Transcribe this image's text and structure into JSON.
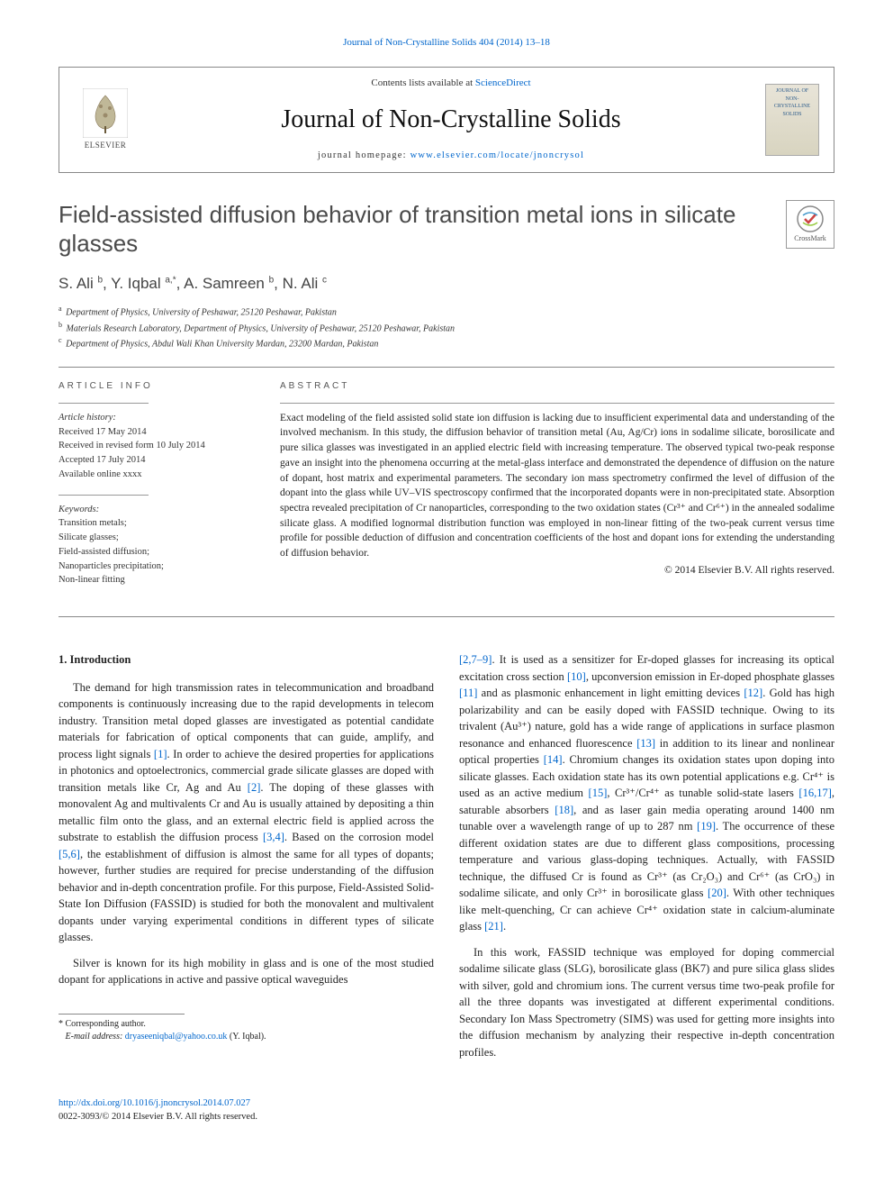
{
  "colors": {
    "link": "#0066cc",
    "text": "#222222",
    "muted": "#555555",
    "border": "#888888",
    "background": "#ffffff"
  },
  "typography": {
    "body_font": "Georgia, Times New Roman, serif",
    "heading_font": "Arial, Helvetica, sans-serif",
    "body_size_pt": 12.5,
    "abstract_size_pt": 11.5,
    "title_size_pt": 26
  },
  "header": {
    "citation_line": "Journal of Non-Crystalline Solids 404 (2014) 13–18",
    "contents_prefix": "Contents lists available at ",
    "contents_link": "ScienceDirect",
    "journal_name": "Journal of Non-Crystalline Solids",
    "homepage_prefix": "journal homepage: ",
    "homepage_url": "www.elsevier.com/locate/jnoncrysol",
    "publisher_brand": "ELSEVIER",
    "cover_caption": "JOURNAL OF NON-CRYSTALLINE SOLIDS"
  },
  "crossmark": {
    "label": "CrossMark"
  },
  "article": {
    "title": "Field-assisted diffusion behavior of transition metal ions in silicate glasses",
    "authors_html": "S. Ali <sup>b</sup>, Y. Iqbal <sup>a,*</sup>, A. Samreen <sup>b</sup>, N. Ali <sup>c</sup>",
    "affiliations": {
      "a": "Department of Physics, University of Peshawar, 25120 Peshawar, Pakistan",
      "b": "Materials Research Laboratory, Department of Physics, University of Peshawar, 25120 Peshawar, Pakistan",
      "c": "Department of Physics, Abdul Wali Khan University Mardan, 23200 Mardan, Pakistan"
    }
  },
  "info": {
    "heading": "ARTICLE INFO",
    "history_label": "Article history:",
    "history": [
      "Received 17 May 2014",
      "Received in revised form 10 July 2014",
      "Accepted 17 July 2014",
      "Available online xxxx"
    ],
    "keywords_label": "Keywords:",
    "keywords": [
      "Transition metals;",
      "Silicate glasses;",
      "Field-assisted diffusion;",
      "Nanoparticles precipitation;",
      "Non-linear fitting"
    ]
  },
  "abstract": {
    "heading": "ABSTRACT",
    "text": "Exact modeling of the field assisted solid state ion diffusion is lacking due to insufficient experimental data and understanding of the involved mechanism. In this study, the diffusion behavior of transition metal (Au, Ag/Cr) ions in sodalime silicate, borosilicate and pure silica glasses was investigated in an applied electric field with increasing temperature. The observed typical two-peak response gave an insight into the phenomena occurring at the metal-glass interface and demonstrated the dependence of diffusion on the nature of dopant, host matrix and experimental parameters. The secondary ion mass spectrometry confirmed the level of diffusion of the dopant into the glass while UV–VIS spectroscopy confirmed that the incorporated dopants were in non-precipitated state. Absorption spectra revealed precipitation of Cr nanoparticles, corresponding to the two oxidation states (Cr³⁺ and Cr⁶⁺) in the annealed sodalime silicate glass. A modified lognormal distribution function was employed in non-linear fitting of the two-peak current versus time profile for possible deduction of diffusion and concentration coefficients of the host and dopant ions for extending the understanding of diffusion behavior.",
    "copyright": "© 2014 Elsevier B.V. All rights reserved."
  },
  "body": {
    "section_number": "1.",
    "section_title": "Introduction",
    "left_paragraphs": [
      "The demand for high transmission rates in telecommunication and broadband components is continuously increasing due to the rapid developments in telecom industry. Transition metal doped glasses are investigated as potential candidate materials for fabrication of optical components that can guide, amplify, and process light signals [1]. In order to achieve the desired properties for applications in photonics and optoelectronics, commercial grade silicate glasses are doped with transition metals like Cr, Ag and Au [2]. The doping of these glasses with monovalent Ag and multivalents Cr and Au is usually attained by depositing a thin metallic film onto the glass, and an external electric field is applied across the substrate to establish the diffusion process [3,4]. Based on the corrosion model [5,6], the establishment of diffusion is almost the same for all types of dopants; however, further studies are required for precise understanding of the diffusion behavior and in-depth concentration profile. For this purpose, Field-Assisted Solid-State Ion Diffusion (FASSID) is studied for both the monovalent and multivalent dopants under varying experimental conditions in different types of silicate glasses.",
      "Silver is known for its high mobility in glass and is one of the most studied dopant for applications in active and passive optical waveguides"
    ],
    "right_paragraphs": [
      "[2,7–9]. It is used as a sensitizer for Er-doped glasses for increasing its optical excitation cross section [10], upconversion emission in Er-doped phosphate glasses [11] and as plasmonic enhancement in light emitting devices [12]. Gold has high polarizability and can be easily doped with FASSID technique. Owing to its trivalent (Au³⁺) nature, gold has a wide range of applications in surface plasmon resonance and enhanced fluorescence [13] in addition to its linear and nonlinear optical properties [14]. Chromium changes its oxidation states upon doping into silicate glasses. Each oxidation state has its own potential applications e.g. Cr⁴⁺ is used as an active medium [15], Cr³⁺/Cr⁴⁺ as tunable solid-state lasers [16,17], saturable absorbers [18], and as laser gain media operating around 1400 nm tunable over a wavelength range of up to 287 nm [19]. The occurrence of these different oxidation states are due to different glass compositions, processing temperature and various glass-doping techniques. Actually, with FASSID technique, the diffused Cr is found as Cr³⁺ (as Cr₂O₃) and Cr⁶⁺ (as CrO₃) in sodalime silicate, and only Cr³⁺ in borosilicate glass [20]. With other techniques like melt-quenching, Cr can achieve Cr⁴⁺ oxidation state in calcium-aluminate glass [21].",
      "In this work, FASSID technique was employed for doping commercial sodalime silicate glass (SLG), borosilicate glass (BK7) and pure silica glass slides with silver, gold and chromium ions. The current versus time two-peak profile for all the three dopants was investigated at different experimental conditions. Secondary Ion Mass Spectrometry (SIMS) was used for getting more insights into the diffusion mechanism by analyzing their respective in-depth concentration profiles."
    ]
  },
  "footnote": {
    "corr_label": "* Corresponding author.",
    "email_label": "E-mail address:",
    "email": "dryaseeniqbal@yahoo.co.uk",
    "email_suffix": "(Y. Iqbal)."
  },
  "footer": {
    "doi": "http://dx.doi.org/10.1016/j.jnoncrysol.2014.07.027",
    "issn_line": "0022-3093/© 2014 Elsevier B.V. All rights reserved."
  }
}
